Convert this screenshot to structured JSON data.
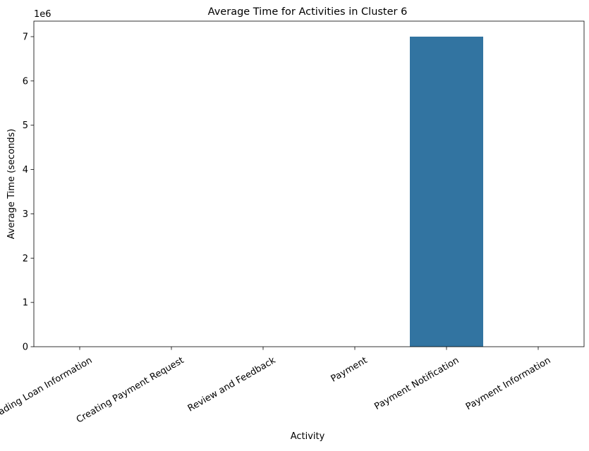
{
  "chart_data": {
    "type": "bar",
    "title": "Average Time for Activities in Cluster 6",
    "xlabel": "Activity",
    "ylabel": "Average Time (seconds)",
    "offset_label": "1e6",
    "categories": [
      "Reading Loan Information",
      "Creating Payment Request",
      "Review and Feedback",
      "Payment",
      "Payment Notification",
      "Payment Information"
    ],
    "values": [
      0,
      0,
      0,
      0,
      7000000,
      0
    ],
    "ylim": [
      0,
      7350000
    ],
    "yticks": [
      0,
      1000000,
      2000000,
      3000000,
      4000000,
      5000000,
      6000000,
      7000000
    ],
    "ytick_labels": [
      "0",
      "1",
      "2",
      "3",
      "4",
      "5",
      "6",
      "7"
    ],
    "bar_color": "#3274a1",
    "grid": false,
    "legend": false
  }
}
